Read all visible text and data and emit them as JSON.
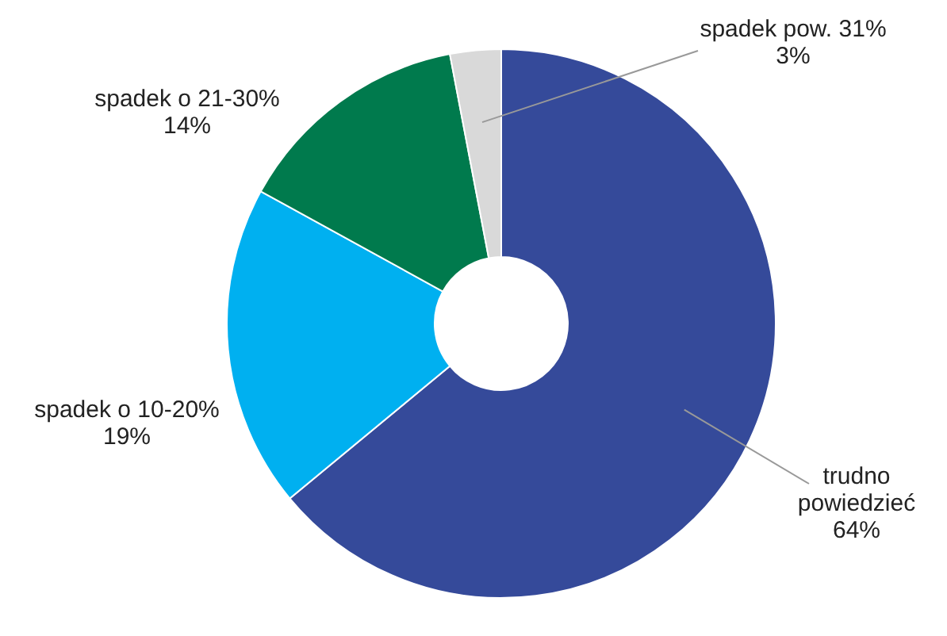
{
  "chart_data": {
    "type": "donut",
    "categories": [
      "trudno powiedzieć",
      "spadek o 10-20%",
      "spadek o 21-30%",
      "spadek pow. 31%"
    ],
    "values": [
      64,
      19,
      14,
      3
    ],
    "value_labels": [
      "64%",
      "19%",
      "14%",
      "3%"
    ],
    "colors": [
      "#354a9a",
      "#00b0f0",
      "#007a4d",
      "#d9d9d9"
    ]
  }
}
